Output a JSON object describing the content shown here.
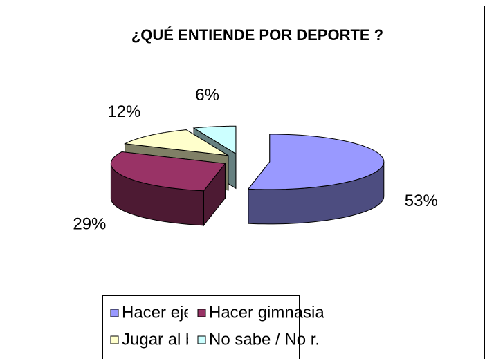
{
  "chart_data": {
    "type": "pie",
    "title": "¿QUÉ ENTIENDE POR DEPORTE  ?",
    "categories": [
      "Hacer ejercicio",
      "Hacer gimnasia",
      "Jugar al balón",
      "No sabe / No r."
    ],
    "values": [
      53,
      29,
      12,
      6
    ],
    "value_labels": [
      "53%",
      "29%",
      "12%",
      "6%"
    ],
    "colors": [
      "#9999ff",
      "#993366",
      "#ffffcc",
      "#ccffff"
    ],
    "legend": "bottom"
  }
}
